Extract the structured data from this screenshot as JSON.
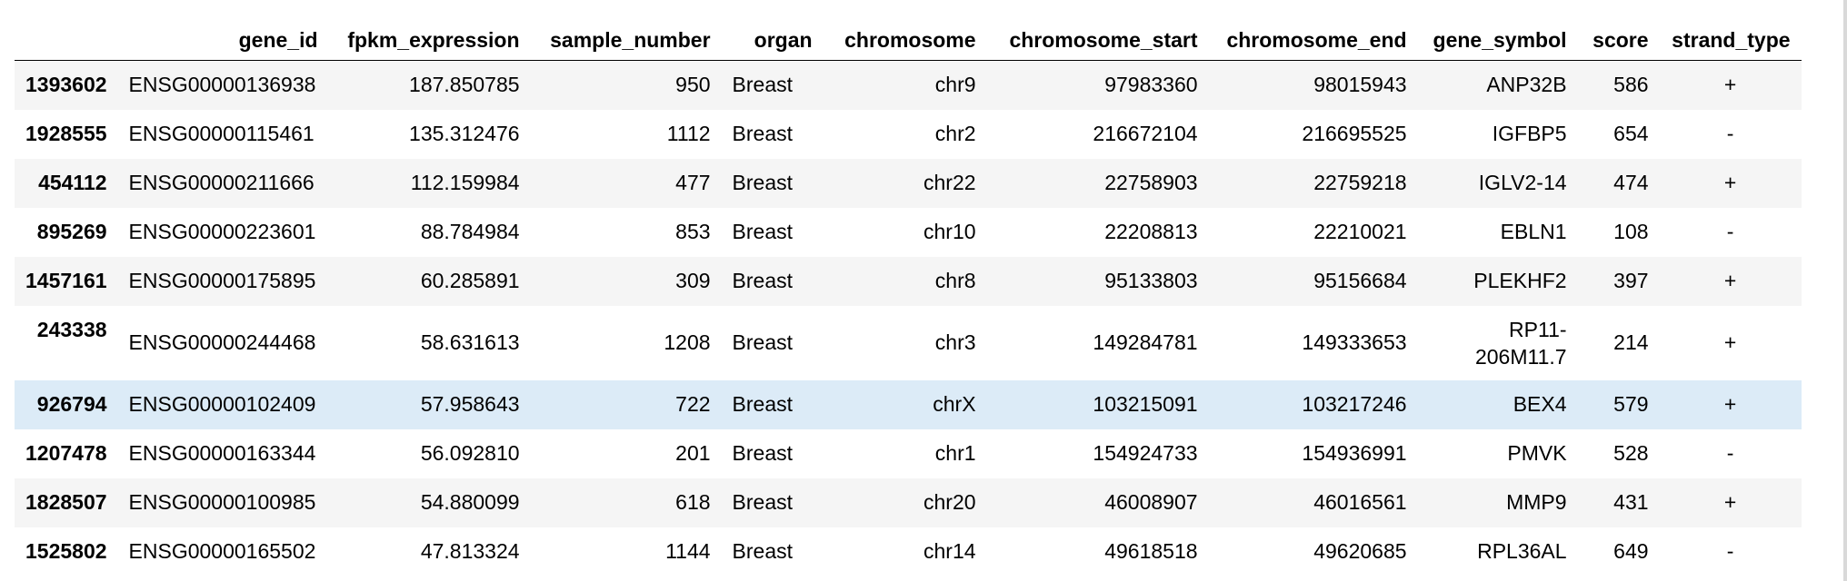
{
  "table": {
    "columns": [
      "",
      "gene_id",
      "fpkm_expression",
      "sample_number",
      "organ",
      "chromosome",
      "chromosome_start",
      "chromosome_end",
      "gene_symbol",
      "score",
      "strand_type"
    ],
    "rows": [
      {
        "index": "1393602",
        "gene_id": "ENSG00000136938",
        "fpkm_expression": "187.850785",
        "sample_number": "950",
        "organ": "Breast",
        "chromosome": "chr9",
        "chromosome_start": "97983360",
        "chromosome_end": "98015943",
        "gene_symbol": "ANP32B",
        "score": "586",
        "strand_type": "+"
      },
      {
        "index": "1928555",
        "gene_id": "ENSG00000115461",
        "fpkm_expression": "135.312476",
        "sample_number": "1112",
        "organ": "Breast",
        "chromosome": "chr2",
        "chromosome_start": "216672104",
        "chromosome_end": "216695525",
        "gene_symbol": "IGFBP5",
        "score": "654",
        "strand_type": "-"
      },
      {
        "index": "454112",
        "gene_id": "ENSG00000211666",
        "fpkm_expression": "112.159984",
        "sample_number": "477",
        "organ": "Breast",
        "chromosome": "chr22",
        "chromosome_start": "22758903",
        "chromosome_end": "22759218",
        "gene_symbol": "IGLV2-14",
        "score": "474",
        "strand_type": "+"
      },
      {
        "index": "895269",
        "gene_id": "ENSG00000223601",
        "fpkm_expression": "88.784984",
        "sample_number": "853",
        "organ": "Breast",
        "chromosome": "chr10",
        "chromosome_start": "22208813",
        "chromosome_end": "22210021",
        "gene_symbol": "EBLN1",
        "score": "108",
        "strand_type": "-"
      },
      {
        "index": "1457161",
        "gene_id": "ENSG00000175895",
        "fpkm_expression": "60.285891",
        "sample_number": "309",
        "organ": "Breast",
        "chromosome": "chr8",
        "chromosome_start": "95133803",
        "chromosome_end": "95156684",
        "gene_symbol": "PLEKHF2",
        "score": "397",
        "strand_type": "+"
      },
      {
        "index": "243338",
        "gene_id": "ENSG00000244468",
        "fpkm_expression": "58.631613",
        "sample_number": "1208",
        "organ": "Breast",
        "chromosome": "chr3",
        "chromosome_start": "149284781",
        "chromosome_end": "149333653",
        "gene_symbol_line1": "RP11-",
        "gene_symbol_line2": "206M11.7",
        "score": "214",
        "strand_type": "+"
      },
      {
        "index": "926794",
        "gene_id": "ENSG00000102409",
        "fpkm_expression": "57.958643",
        "sample_number": "722",
        "organ": "Breast",
        "chromosome": "chrX",
        "chromosome_start": "103215091",
        "chromosome_end": "103217246",
        "gene_symbol": "BEX4",
        "score": "579",
        "strand_type": "+"
      },
      {
        "index": "1207478",
        "gene_id": "ENSG00000163344",
        "fpkm_expression": "56.092810",
        "sample_number": "201",
        "organ": "Breast",
        "chromosome": "chr1",
        "chromosome_start": "154924733",
        "chromosome_end": "154936991",
        "gene_symbol": "PMVK",
        "score": "528",
        "strand_type": "-"
      },
      {
        "index": "1828507",
        "gene_id": "ENSG00000100985",
        "fpkm_expression": "54.880099",
        "sample_number": "618",
        "organ": "Breast",
        "chromosome": "chr20",
        "chromosome_start": "46008907",
        "chromosome_end": "46016561",
        "gene_symbol": "MMP9",
        "score": "431",
        "strand_type": "+"
      },
      {
        "index": "1525802",
        "gene_id": "ENSG00000165502",
        "fpkm_expression": "47.813324",
        "sample_number": "1144",
        "organ": "Breast",
        "chromosome": "chr14",
        "chromosome_start": "49618518",
        "chromosome_end": "49620685",
        "gene_symbol": "RPL36AL",
        "score": "649",
        "strand_type": "-"
      }
    ]
  },
  "colors": {
    "row_odd": "#f5f5f5",
    "row_even": "#ffffff",
    "row_hover": "#dcebf7",
    "header_rule": "#000000"
  }
}
